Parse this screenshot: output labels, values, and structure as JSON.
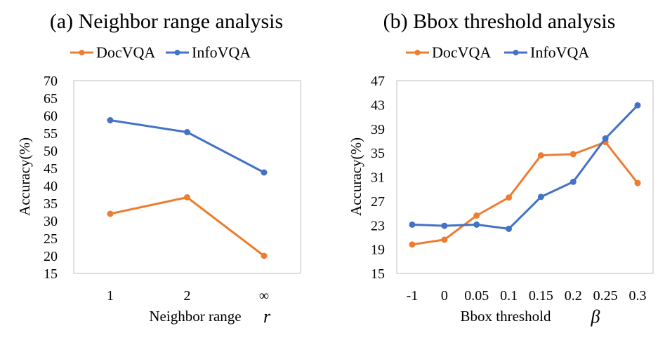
{
  "chart_data": [
    {
      "type": "line",
      "title": "(a) Neighbor range analysis",
      "xlabel": "Neighbor range",
      "xlabel_symbol": "r",
      "ylabel": "Accuracy(%)",
      "categories": [
        "1",
        "2",
        "∞"
      ],
      "ylim": [
        15,
        70
      ],
      "yticks": [
        15,
        20,
        25,
        30,
        35,
        40,
        45,
        50,
        55,
        60,
        65,
        70
      ],
      "grid": false,
      "legend_position": "top",
      "series": [
        {
          "name": "DocVQA",
          "color": "#ED7D31",
          "values": [
            32.0,
            36.7,
            20.0
          ]
        },
        {
          "name": "InfoVQA",
          "color": "#4472C4",
          "values": [
            58.7,
            55.3,
            43.8
          ]
        }
      ]
    },
    {
      "type": "line",
      "title": "(b) Bbox threshold analysis",
      "xlabel": "Bbox threshold",
      "xlabel_symbol": "β",
      "ylabel": "Accuracy(%)",
      "categories": [
        "-1",
        "0",
        "0.05",
        "0.1",
        "0.15",
        "0.2",
        "0.25",
        "0.3"
      ],
      "ylim": [
        15,
        47
      ],
      "yticks": [
        15,
        19,
        23,
        27,
        31,
        35,
        39,
        43,
        47
      ],
      "grid": false,
      "legend_position": "top",
      "series": [
        {
          "name": "DocVQA",
          "color": "#ED7D31",
          "values": [
            19.8,
            20.6,
            24.6,
            27.6,
            34.6,
            34.8,
            36.8,
            30.0
          ]
        },
        {
          "name": "InfoVQA",
          "color": "#4472C4",
          "values": [
            23.1,
            22.9,
            23.1,
            22.4,
            27.7,
            30.2,
            37.4,
            42.9
          ]
        }
      ]
    }
  ]
}
